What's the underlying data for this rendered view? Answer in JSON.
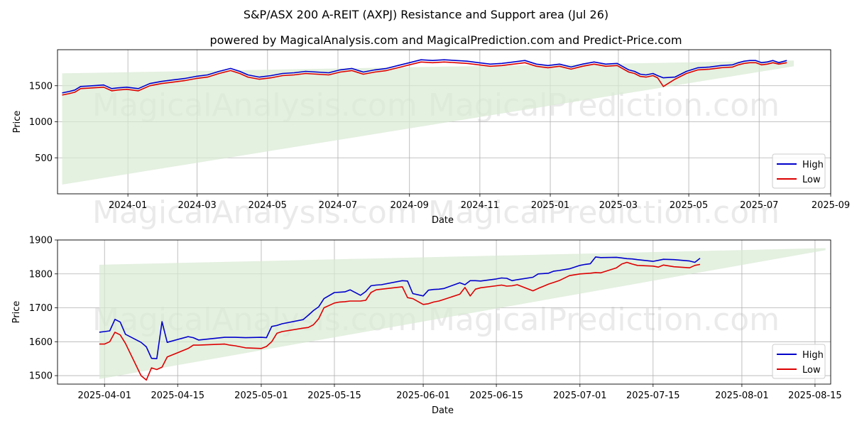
{
  "title": "S&P/ASX 200 A-REIT (AXPJ) Resistance and Support area (Jul 26)",
  "subtitle": "powered by MagicalAnalysis.com and MagicalPrediction.com and Predict-Price.com",
  "watermarks": [
    "MagicalAnalysis.com",
    "MagicalPrediction.com"
  ],
  "colors": {
    "high": "#0000cc",
    "low": "#dd0000",
    "band": "#d9ead3",
    "grid": "#b0b0b0"
  },
  "chart_data": [
    {
      "type": "line",
      "xlabel": "Date",
      "ylabel": "Price",
      "xlim": [
        0,
        670
      ],
      "ylim": [
        0,
        2000
      ],
      "x_ticks": [
        {
          "x": 61,
          "label": "2024-01"
        },
        {
          "x": 121,
          "label": "2024-03"
        },
        {
          "x": 182,
          "label": "2024-05"
        },
        {
          "x": 243,
          "label": "2024-07"
        },
        {
          "x": 305,
          "label": "2024-09"
        },
        {
          "x": 366,
          "label": "2024-11"
        },
        {
          "x": 427,
          "label": "2025-01"
        },
        {
          "x": 486,
          "label": "2025-03"
        },
        {
          "x": 547,
          "label": "2025-05"
        },
        {
          "x": 608,
          "label": "2025-07"
        },
        {
          "x": 670,
          "label": "2025-09"
        }
      ],
      "y_ticks": [
        500,
        1000,
        1500
      ],
      "band": {
        "x": [
          4,
          638
        ],
        "upper": [
          1672,
          1850
        ],
        "lower": [
          128,
          1770
        ]
      },
      "legend": {
        "position": "lower-right",
        "entries": [
          "High",
          "Low"
        ]
      },
      "series": [
        {
          "name": "High",
          "x": [
            4,
            10,
            15,
            20,
            30,
            40,
            47,
            52,
            60,
            70,
            80,
            90,
            100,
            110,
            120,
            130,
            140,
            150,
            158,
            165,
            175,
            185,
            195,
            205,
            215,
            225,
            235,
            245,
            255,
            265,
            275,
            285,
            295,
            305,
            315,
            325,
            335,
            345,
            355,
            365,
            375,
            385,
            395,
            405,
            415,
            425,
            435,
            445,
            455,
            465,
            475,
            485,
            495,
            500,
            505,
            510,
            516,
            520,
            525,
            535,
            545,
            555,
            565,
            575,
            585,
            590,
            595,
            600,
            605,
            610,
            615,
            620,
            625,
            632
          ],
          "values": [
            1400,
            1420,
            1440,
            1490,
            1500,
            1510,
            1460,
            1470,
            1480,
            1460,
            1530,
            1560,
            1580,
            1600,
            1630,
            1650,
            1700,
            1740,
            1700,
            1650,
            1620,
            1640,
            1670,
            1680,
            1700,
            1690,
            1680,
            1720,
            1740,
            1690,
            1720,
            1740,
            1780,
            1820,
            1860,
            1850,
            1860,
            1850,
            1840,
            1820,
            1800,
            1810,
            1830,
            1850,
            1800,
            1780,
            1800,
            1760,
            1800,
            1830,
            1800,
            1810,
            1720,
            1700,
            1660,
            1650,
            1670,
            1640,
            1610,
            1620,
            1700,
            1750,
            1760,
            1780,
            1790,
            1820,
            1840,
            1850,
            1850,
            1820,
            1830,
            1850,
            1820,
            1850
          ]
        },
        {
          "name": "Low",
          "x": [
            4,
            10,
            15,
            20,
            30,
            40,
            47,
            52,
            60,
            70,
            80,
            90,
            100,
            110,
            120,
            130,
            140,
            150,
            158,
            165,
            175,
            185,
            195,
            205,
            215,
            225,
            235,
            245,
            255,
            265,
            275,
            285,
            295,
            305,
            315,
            325,
            335,
            345,
            355,
            365,
            375,
            385,
            395,
            405,
            415,
            425,
            435,
            445,
            455,
            465,
            475,
            485,
            495,
            500,
            505,
            510,
            516,
            520,
            525,
            535,
            545,
            555,
            565,
            575,
            585,
            590,
            595,
            600,
            605,
            610,
            615,
            620,
            625,
            632
          ],
          "values": [
            1370,
            1390,
            1410,
            1460,
            1470,
            1480,
            1430,
            1440,
            1450,
            1430,
            1500,
            1530,
            1550,
            1570,
            1600,
            1620,
            1670,
            1710,
            1670,
            1620,
            1590,
            1610,
            1640,
            1650,
            1670,
            1660,
            1650,
            1690,
            1710,
            1660,
            1690,
            1710,
            1750,
            1790,
            1830,
            1820,
            1830,
            1820,
            1810,
            1790,
            1770,
            1780,
            1800,
            1820,
            1770,
            1750,
            1770,
            1730,
            1770,
            1800,
            1770,
            1780,
            1690,
            1670,
            1630,
            1620,
            1640,
            1610,
            1490,
            1590,
            1670,
            1720,
            1730,
            1750,
            1760,
            1790,
            1810,
            1820,
            1820,
            1790,
            1800,
            1820,
            1800,
            1820
          ]
        }
      ]
    },
    {
      "type": "line",
      "xlabel": "Date",
      "ylabel": "Price",
      "xlim": [
        0,
        148
      ],
      "ylim": [
        1475,
        1900
      ],
      "x_ticks": [
        {
          "x": 9,
          "label": "2025-04-01"
        },
        {
          "x": 23,
          "label": "2025-04-15"
        },
        {
          "x": 39,
          "label": "2025-05-01"
        },
        {
          "x": 53,
          "label": "2025-05-15"
        },
        {
          "x": 70,
          "label": "2025-06-01"
        },
        {
          "x": 84,
          "label": "2025-06-15"
        },
        {
          "x": 100,
          "label": "2025-07-01"
        },
        {
          "x": 114,
          "label": "2025-07-15"
        },
        {
          "x": 131,
          "label": "2025-08-01"
        },
        {
          "x": 145,
          "label": "2025-08-15"
        }
      ],
      "y_ticks": [
        1500,
        1600,
        1700,
        1800,
        1900
      ],
      "band": {
        "x": [
          8,
          147
        ],
        "upper": [
          1827,
          1876
        ],
        "lower": [
          1490,
          1870
        ]
      },
      "legend": {
        "position": "lower-right",
        "entries": [
          "High",
          "Low"
        ]
      },
      "series": [
        {
          "name": "High",
          "x": [
            8,
            9,
            10,
            11,
            12,
            13,
            16,
            17,
            18,
            19,
            20,
            21,
            25,
            26,
            27,
            32,
            33,
            34,
            36,
            39,
            40,
            41,
            42,
            43,
            47,
            48,
            49,
            50,
            51,
            53,
            54,
            55,
            56,
            58,
            59,
            60,
            61,
            62,
            66,
            67,
            68,
            70,
            71,
            72,
            73,
            74,
            77,
            78,
            79,
            80,
            81,
            84,
            85,
            86,
            87,
            88,
            91,
            92,
            94,
            95,
            96,
            98,
            100,
            101,
            102,
            103,
            104,
            107,
            108,
            109,
            110,
            111,
            114,
            115,
            116,
            118,
            121,
            122,
            123
          ],
          "values": [
            1628,
            1630,
            1632,
            1666,
            1658,
            1622,
            1598,
            1585,
            1551,
            1550,
            1659,
            1598,
            1615,
            1612,
            1605,
            1613,
            1613,
            1613,
            1612,
            1613,
            1612,
            1645,
            1648,
            1653,
            1665,
            1678,
            1692,
            1703,
            1727,
            1745,
            1746,
            1747,
            1753,
            1737,
            1748,
            1765,
            1767,
            1768,
            1780,
            1779,
            1742,
            1735,
            1752,
            1754,
            1755,
            1757,
            1774,
            1768,
            1780,
            1780,
            1779,
            1785,
            1788,
            1787,
            1780,
            1783,
            1790,
            1800,
            1802,
            1808,
            1810,
            1815,
            1825,
            1828,
            1830,
            1850,
            1848,
            1849,
            1847,
            1845,
            1844,
            1842,
            1837,
            1840,
            1843,
            1842,
            1838,
            1834,
            1846
          ]
        },
        {
          "name": "Low",
          "x": [
            8,
            9,
            10,
            11,
            12,
            13,
            16,
            17,
            18,
            19,
            20,
            21,
            25,
            26,
            27,
            32,
            33,
            34,
            36,
            39,
            40,
            41,
            42,
            43,
            47,
            48,
            49,
            50,
            51,
            53,
            54,
            55,
            56,
            58,
            59,
            60,
            61,
            62,
            66,
            67,
            68,
            70,
            71,
            72,
            73,
            74,
            77,
            78,
            79,
            80,
            81,
            84,
            85,
            86,
            87,
            88,
            91,
            92,
            94,
            95,
            96,
            98,
            100,
            101,
            102,
            103,
            104,
            107,
            108,
            109,
            110,
            111,
            114,
            115,
            116,
            118,
            121,
            122,
            123
          ],
          "values": [
            1593,
            1593,
            1600,
            1628,
            1620,
            1595,
            1500,
            1487,
            1523,
            1518,
            1525,
            1555,
            1580,
            1590,
            1590,
            1593,
            1590,
            1588,
            1582,
            1580,
            1586,
            1600,
            1625,
            1630,
            1640,
            1642,
            1650,
            1668,
            1700,
            1714,
            1717,
            1718,
            1720,
            1720,
            1722,
            1745,
            1753,
            1755,
            1762,
            1730,
            1727,
            1710,
            1712,
            1717,
            1720,
            1725,
            1740,
            1760,
            1735,
            1755,
            1759,
            1765,
            1767,
            1764,
            1765,
            1768,
            1750,
            1757,
            1770,
            1775,
            1780,
            1795,
            1800,
            1801,
            1802,
            1804,
            1803,
            1818,
            1829,
            1834,
            1829,
            1825,
            1823,
            1820,
            1826,
            1821,
            1818,
            1825,
            1828
          ]
        }
      ]
    }
  ]
}
